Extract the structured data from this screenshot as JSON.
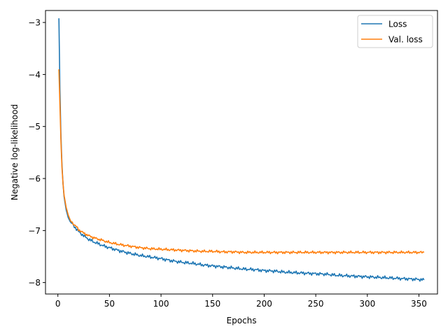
{
  "chart_data": {
    "type": "line",
    "title": "",
    "xlabel": "Epochs",
    "ylabel": "Negative log-likelihood",
    "xlim": [
      -12,
      368
    ],
    "ylim": [
      -8.22,
      -2.77
    ],
    "xticks": [
      0,
      50,
      100,
      150,
      200,
      250,
      300,
      350
    ],
    "yticks": [
      -8,
      -7,
      -6,
      -5,
      -4,
      -3
    ],
    "grid": false,
    "legend": "top-right",
    "series": [
      {
        "name": "Loss",
        "color": "#1f77b4",
        "x": [
          1,
          2,
          3,
          4,
          5,
          6,
          8,
          10,
          12,
          15,
          18,
          20,
          25,
          30,
          35,
          40,
          45,
          50,
          60,
          70,
          80,
          90,
          100,
          110,
          120,
          130,
          140,
          150,
          160,
          170,
          180,
          190,
          200,
          210,
          220,
          230,
          240,
          250,
          260,
          270,
          280,
          290,
          300,
          310,
          320,
          330,
          340,
          350,
          355
        ],
        "y": [
          -2.92,
          -4.3,
          -5.2,
          -5.75,
          -6.1,
          -6.35,
          -6.6,
          -6.75,
          -6.83,
          -6.9,
          -6.97,
          -7.02,
          -7.1,
          -7.17,
          -7.22,
          -7.26,
          -7.3,
          -7.33,
          -7.39,
          -7.44,
          -7.48,
          -7.51,
          -7.54,
          -7.58,
          -7.61,
          -7.63,
          -7.66,
          -7.68,
          -7.7,
          -7.72,
          -7.74,
          -7.75,
          -7.77,
          -7.78,
          -7.8,
          -7.81,
          -7.82,
          -7.83,
          -7.84,
          -7.86,
          -7.87,
          -7.88,
          -7.89,
          -7.9,
          -7.91,
          -7.92,
          -7.93,
          -7.94,
          -7.95
        ]
      },
      {
        "name": "Val. loss",
        "color": "#ff7f0e",
        "x": [
          1,
          2,
          3,
          4,
          5,
          6,
          8,
          10,
          12,
          15,
          18,
          20,
          25,
          30,
          35,
          40,
          45,
          50,
          60,
          70,
          80,
          90,
          100,
          110,
          120,
          130,
          140,
          150,
          160,
          170,
          180,
          190,
          200,
          210,
          220,
          230,
          240,
          250,
          260,
          270,
          280,
          290,
          300,
          310,
          320,
          330,
          340,
          350,
          355
        ],
        "y": [
          -3.9,
          -4.6,
          -5.3,
          -5.8,
          -6.1,
          -6.32,
          -6.55,
          -6.7,
          -6.8,
          -6.87,
          -6.93,
          -6.98,
          -7.05,
          -7.1,
          -7.14,
          -7.17,
          -7.2,
          -7.23,
          -7.27,
          -7.3,
          -7.33,
          -7.35,
          -7.36,
          -7.37,
          -7.38,
          -7.39,
          -7.4,
          -7.4,
          -7.41,
          -7.41,
          -7.42,
          -7.42,
          -7.42,
          -7.42,
          -7.42,
          -7.42,
          -7.42,
          -7.42,
          -7.42,
          -7.42,
          -7.42,
          -7.42,
          -7.42,
          -7.42,
          -7.42,
          -7.42,
          -7.42,
          -7.42,
          -7.42
        ]
      }
    ]
  }
}
